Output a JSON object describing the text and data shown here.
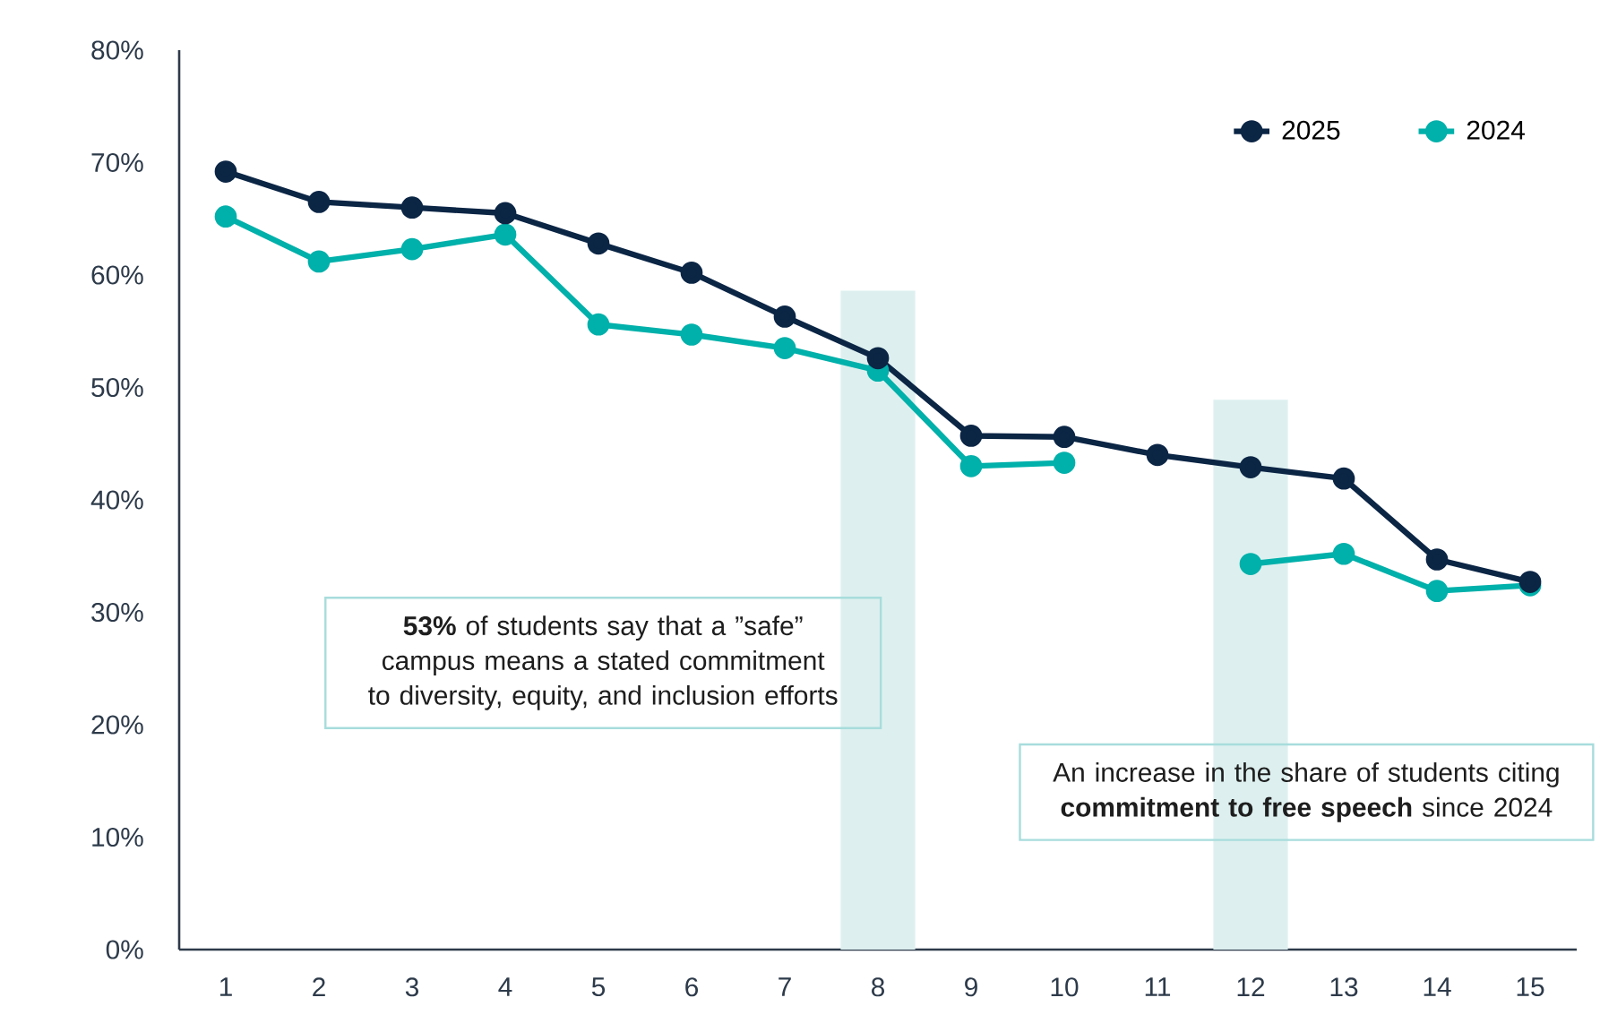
{
  "chart_data": {
    "type": "line",
    "x": [
      1,
      2,
      3,
      4,
      5,
      6,
      7,
      8,
      9,
      10,
      11,
      12,
      13,
      14,
      15
    ],
    "xlim": [
      0.5,
      15.5
    ],
    "xticks": [
      1,
      2,
      3,
      4,
      5,
      6,
      7,
      8,
      9,
      10,
      11,
      12,
      13,
      14,
      15
    ],
    "ylim": [
      0,
      80
    ],
    "yticks": [
      {
        "value": 0,
        "label": "0%"
      },
      {
        "value": 10,
        "label": "10%"
      },
      {
        "value": 20,
        "label": "20%"
      },
      {
        "value": 30,
        "label": "30%"
      },
      {
        "value": 40,
        "label": "40%"
      },
      {
        "value": 50,
        "label": "50%"
      },
      {
        "value": 60,
        "label": "60%"
      },
      {
        "value": 70,
        "label": "70%"
      },
      {
        "value": 80,
        "label": "80%"
      }
    ],
    "series": [
      {
        "name": "2025",
        "color": "#0b2545",
        "values": [
          69.2,
          66.5,
          66.0,
          65.5,
          62.8,
          60.2,
          56.3,
          52.6,
          45.7,
          45.6,
          44.0,
          42.9,
          41.9,
          34.7,
          32.7
        ]
      },
      {
        "name": "2024",
        "color": "#00b0aa",
        "values": [
          65.2,
          61.2,
          62.3,
          63.6,
          55.6,
          54.7,
          53.5,
          51.5,
          43.0,
          43.3,
          null,
          34.3,
          35.2,
          31.9,
          32.4
        ]
      }
    ],
    "bands": [
      {
        "axis": "x",
        "from": 7.6,
        "to": 8.4,
        "color": "#ddf0ef"
      },
      {
        "axis": "x",
        "from": 11.6,
        "to": 12.4,
        "color": "#ddf0ef"
      }
    ],
    "annotations": [
      "**53%** of students say that a ”safe” campus means a stated commitment to diversity, equity, and inclusion efforts",
      "An increase in the share of students citing **commitment to free speech** since 2024"
    ],
    "marker": "circle",
    "line_style": "solid",
    "legend": "top right",
    "grid": false
  }
}
